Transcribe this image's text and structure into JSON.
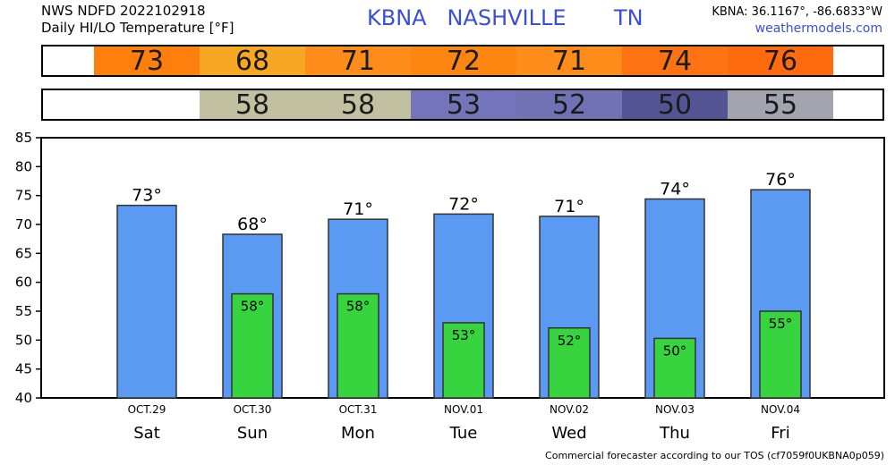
{
  "header": {
    "line1": "NWS NDFD 2022102918",
    "line2": "Daily HI/LO Temperature [°F]",
    "station": "KBNA   NASHVILLE       TN",
    "coords": "KBNA: 36.1167°, -86.6833°W",
    "site": "weathermodels.com"
  },
  "hi_strip": [
    {
      "value": "73",
      "color": "#ff7f0e"
    },
    {
      "value": "68",
      "color": "#f8a724"
    },
    {
      "value": "71",
      "color": "#fd8c1a"
    },
    {
      "value": "72",
      "color": "#fd8512"
    },
    {
      "value": "71",
      "color": "#fd8c1a"
    },
    {
      "value": "74",
      "color": "#fd7213"
    },
    {
      "value": "76",
      "color": "#fe6a0e"
    }
  ],
  "lo_strip": [
    {
      "value": "",
      "color": "#ffffff"
    },
    {
      "value": "58",
      "color": "#c1c1a1"
    },
    {
      "value": "58",
      "color": "#c1c1a1"
    },
    {
      "value": "53",
      "color": "#7474bb"
    },
    {
      "value": "52",
      "color": "#7171b6"
    },
    {
      "value": "50",
      "color": "#545494"
    },
    {
      "value": "55",
      "color": "#a3a3b0"
    }
  ],
  "chart_data": {
    "type": "bar",
    "categories": [
      "Sat",
      "Sun",
      "Mon",
      "Tue",
      "Wed",
      "Thu",
      "Fri"
    ],
    "dates": [
      "OCT.29",
      "OCT.30",
      "OCT.31",
      "NOV.01",
      "NOV.02",
      "NOV.03",
      "NOV.04"
    ],
    "series": [
      {
        "values": [
          73.3,
          68.3,
          70.9,
          71.8,
          71.4,
          74.4,
          76.0
        ],
        "labels": [
          "73°",
          "68°",
          "71°",
          "72°",
          "71°",
          "74°",
          "76°"
        ],
        "color": "#5a9af2"
      },
      {
        "values": [
          null,
          58.0,
          58.0,
          53.0,
          52.1,
          50.3,
          55.0
        ],
        "labels": [
          "",
          "58°",
          "58°",
          "53°",
          "52°",
          "50°",
          "55°"
        ],
        "color": "#37d43f"
      }
    ],
    "ylim": [
      40,
      85
    ],
    "yticks": [
      "40",
      "45",
      "50",
      "55",
      "60",
      "65",
      "70",
      "75",
      "80",
      "85"
    ],
    "grid": false
  },
  "footer": "Commercial forecaster according to our TOS (cf7059f0UKBNA0p059)"
}
